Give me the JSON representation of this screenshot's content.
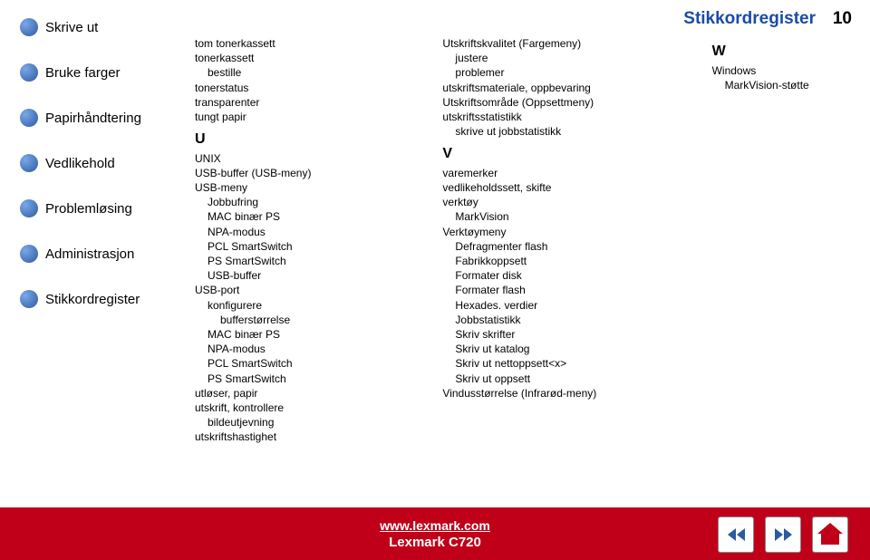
{
  "header": {
    "title": "Stikkordregister",
    "page_number": "10"
  },
  "sidebar": {
    "items": [
      {
        "label": "Skrive ut"
      },
      {
        "label": "Bruke farger"
      },
      {
        "label": "Papirhåndtering"
      },
      {
        "label": "Vedlikehold"
      },
      {
        "label": "Problemløsing"
      },
      {
        "label": "Administrasjon"
      },
      {
        "label": "Stikkordregister"
      }
    ]
  },
  "columns": {
    "col1": {
      "entries": [
        {
          "text": "tom tonerkassett",
          "indent": 0
        },
        {
          "text": "tonerkassett",
          "indent": 0
        },
        {
          "text": "bestille",
          "indent": 1
        },
        {
          "text": "tonerstatus",
          "indent": 0
        },
        {
          "text": "transparenter",
          "indent": 0
        },
        {
          "text": "tungt papir",
          "indent": 0
        }
      ],
      "section_head": "U",
      "section_entries": [
        {
          "text": "UNIX",
          "indent": 0
        },
        {
          "text": "USB-buffer (USB-meny)",
          "indent": 0
        },
        {
          "text": "USB-meny",
          "indent": 0
        },
        {
          "text": "Jobbufring",
          "indent": 1
        },
        {
          "text": "MAC binær PS",
          "indent": 1
        },
        {
          "text": "NPA-modus",
          "indent": 1
        },
        {
          "text": "PCL SmartSwitch",
          "indent": 1
        },
        {
          "text": "PS SmartSwitch",
          "indent": 1
        },
        {
          "text": "USB-buffer",
          "indent": 1
        },
        {
          "text": "USB-port",
          "indent": 0
        },
        {
          "text": "konfigurere",
          "indent": 1
        },
        {
          "text": "bufferstørrelse",
          "indent": 2
        },
        {
          "text": "MAC binær PS",
          "indent": 1
        },
        {
          "text": "NPA-modus",
          "indent": 1
        },
        {
          "text": "PCL SmartSwitch",
          "indent": 1
        },
        {
          "text": "PS SmartSwitch",
          "indent": 1
        },
        {
          "text": "utløser, papir",
          "indent": 0
        },
        {
          "text": "utskrift, kontrollere",
          "indent": 0
        },
        {
          "text": "bildeutjevning",
          "indent": 1
        },
        {
          "text": "utskriftshastighet",
          "indent": 0
        }
      ]
    },
    "col2": {
      "entries": [
        {
          "text": "Utskriftskvalitet (Fargemeny)",
          "indent": 0
        },
        {
          "text": "justere",
          "indent": 1
        },
        {
          "text": "problemer",
          "indent": 1
        },
        {
          "text": "utskriftsmateriale, oppbevaring",
          "indent": 0
        },
        {
          "text": "Utskriftsområde (Oppsettmeny)",
          "indent": 0
        },
        {
          "text": "utskriftsstatistikk",
          "indent": 0
        },
        {
          "text": "skrive ut jobbstatistikk",
          "indent": 1
        }
      ],
      "section_head": "V",
      "section_entries": [
        {
          "text": "varemerker",
          "indent": 0
        },
        {
          "text": "vedlikeholdssett, skifte",
          "indent": 0
        },
        {
          "text": "verktøy",
          "indent": 0
        },
        {
          "text": "MarkVision",
          "indent": 1
        },
        {
          "text": "Verktøymeny",
          "indent": 0
        },
        {
          "text": "Defragmenter flash",
          "indent": 1
        },
        {
          "text": "Fabrikkoppsett",
          "indent": 1
        },
        {
          "text": "Formater disk",
          "indent": 1
        },
        {
          "text": "Formater flash",
          "indent": 1
        },
        {
          "text": "Hexades. verdier",
          "indent": 1
        },
        {
          "text": "Jobbstatistikk",
          "indent": 1
        },
        {
          "text": "Skriv skrifter",
          "indent": 1
        },
        {
          "text": "Skriv ut katalog",
          "indent": 1
        },
        {
          "text": "Skriv ut nettoppsett<x>",
          "indent": 1
        },
        {
          "text": "Skriv ut oppsett",
          "indent": 1
        },
        {
          "text": "Vindusstørrelse (Infrarød-meny)",
          "indent": 0
        }
      ]
    },
    "col3": {
      "section_head": "W",
      "section_entries": [
        {
          "text": "Windows",
          "indent": 0
        },
        {
          "text": "MarkVision-støtte",
          "indent": 1
        }
      ]
    }
  },
  "footer": {
    "link": "www.lexmark.com",
    "product": "Lexmark C720"
  },
  "colors": {
    "brand_blue": "#1a4ba8",
    "brand_red": "#c00018",
    "text": "#000000",
    "bg": "#ffffff"
  }
}
